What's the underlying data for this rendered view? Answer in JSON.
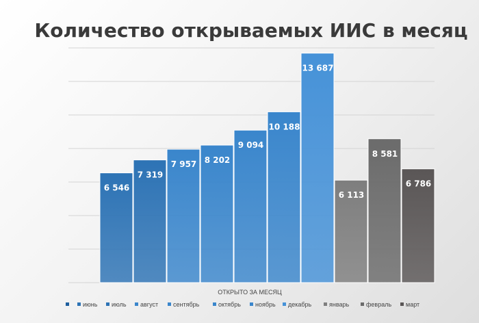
{
  "chart_data": {
    "type": "bar",
    "title": "Количество открываемых ИИС в месяц",
    "xlabel": "ОТКРЫТО ЗА МЕСЯЦ",
    "ylabel": "",
    "categories": [
      "ОТКРЫТО ЗА МЕСЯЦ"
    ],
    "ylim": [
      0,
      14000
    ],
    "grid": true,
    "legend_position": "bottom",
    "series": [
      {
        "name": "",
        "value": 0,
        "label": "",
        "color": "#1f5f9e"
      },
      {
        "name": "июнь",
        "value": 6546,
        "label": "6 546",
        "color": "#2d73b5"
      },
      {
        "name": "июль",
        "value": 7319,
        "label": "7 319",
        "color": "#2d73b5"
      },
      {
        "name": "август",
        "value": 7957,
        "label": "7 957",
        "color": "#3a86cc"
      },
      {
        "name": "сентябрь",
        "value": 8202,
        "label": "8 202",
        "color": "#3a86cc"
      },
      {
        "name": "октябрь",
        "value": 9094,
        "label": "9 094",
        "color": "#3a86cc"
      },
      {
        "name": "ноябрь",
        "value": 10188,
        "label": "10 188",
        "color": "#3a86cc"
      },
      {
        "name": "декабрь",
        "value": 13687,
        "label": "13 687",
        "color": "#4692d8"
      },
      {
        "name": "январь",
        "value": 6113,
        "label": "6 113",
        "color": "#7e7e7e"
      },
      {
        "name": "февраль",
        "value": 8581,
        "label": "8 581",
        "color": "#6b6b6b"
      },
      {
        "name": "март",
        "value": 6786,
        "label": "6 786",
        "color": "#5a5656"
      }
    ]
  }
}
